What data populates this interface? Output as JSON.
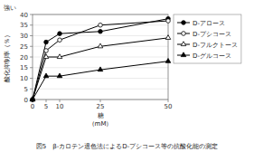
{
  "chart_data": {
    "type": "line",
    "x": [
      0,
      5,
      10,
      25,
      50
    ],
    "series": [
      {
        "name": "D-アロース",
        "color": "black",
        "marker": "circle",
        "values": [
          0,
          27,
          31,
          32,
          38
        ]
      },
      {
        "name": "D-プシコース",
        "color": "black",
        "marker": "circle-open",
        "values": [
          0,
          23,
          28,
          35,
          37
        ]
      },
      {
        "name": "D-フルクトース",
        "color": "black",
        "marker": "triangle-open",
        "values": [
          0,
          20,
          20,
          25,
          29
        ]
      },
      {
        "name": "D-グルコース",
        "color": "black",
        "marker": "triangle",
        "values": [
          0,
          11,
          11,
          14,
          18
        ]
      }
    ],
    "xlabel": [
      "糖",
      "（mM）"
    ],
    "ylabel": "酸化抑制率（％）",
    "annotations": [
      "強い"
    ],
    "caption": "図5　β-カロテン退色法によるD-プシコース等の抗酸化能の測定",
    "xlim": [
      0,
      50
    ],
    "ylim": [
      0,
      40
    ],
    "xticks": [
      0,
      5,
      10,
      25,
      50
    ],
    "yticks": [
      0,
      5,
      10,
      15,
      20,
      25,
      30,
      35,
      40
    ],
    "grid": true,
    "legend": "right"
  }
}
